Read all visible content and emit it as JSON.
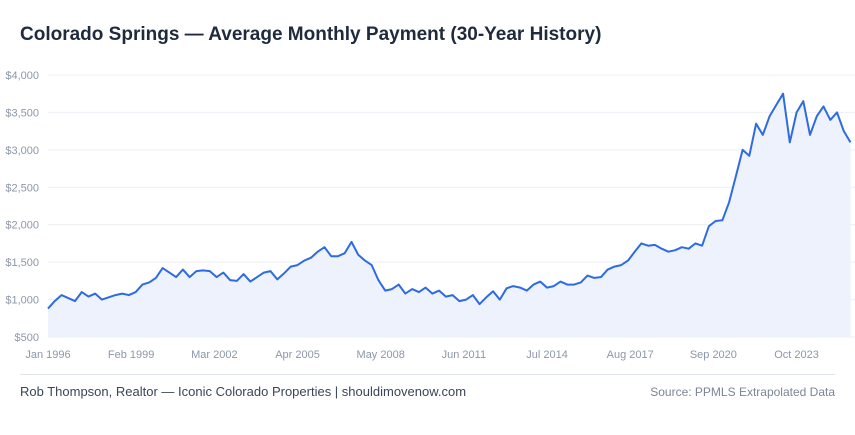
{
  "header": {
    "title": "Colorado Springs — Average Monthly Payment (30-Year History)"
  },
  "footer": {
    "credit": "Rob Thompson, Realtor — Iconic Colorado Properties  |  shouldimovenow.com",
    "source": "Source: PPMLS Extrapolated Data"
  },
  "colors": {
    "line": "#2d6be3",
    "area": "#eef2fc",
    "grid": "#eceff4"
  },
  "chart_data": {
    "type": "area",
    "title": "Colorado Springs — Average Monthly Payment (30-Year History)",
    "xlabel": "",
    "ylabel": "",
    "ylim": [
      500,
      4000
    ],
    "xlim": [
      "1996-01",
      "2025-12"
    ],
    "grid": true,
    "yticks": [
      500,
      1000,
      1500,
      2000,
      2500,
      3000,
      3500,
      4000
    ],
    "ytick_labels": [
      "$500",
      "$1,000",
      "$1,500",
      "$2,000",
      "$2,500",
      "$3,000",
      "$3,500",
      "$4,000"
    ],
    "xticks": [
      "1996-01",
      "1999-02",
      "2002-03",
      "2005-04",
      "2008-05",
      "2011-06",
      "2014-07",
      "2017-08",
      "2020-09",
      "2023-10"
    ],
    "xtick_labels": [
      "Jan 1996",
      "Feb 1999",
      "Mar 2002",
      "Apr 2005",
      "May 2008",
      "Jun 2011",
      "Jul 2014",
      "Aug 2017",
      "Sep 2020",
      "Oct 2023"
    ],
    "series": [
      {
        "x": [
          "1996-01",
          "1996-04",
          "1996-07",
          "1996-10",
          "1997-01",
          "1997-04",
          "1997-07",
          "1997-10",
          "1998-01",
          "1998-04",
          "1998-07",
          "1998-10",
          "1999-01",
          "1999-04",
          "1999-07",
          "1999-10",
          "2000-01",
          "2000-04",
          "2000-07",
          "2000-10",
          "2001-01",
          "2001-04",
          "2001-07",
          "2001-10",
          "2002-01",
          "2002-04",
          "2002-07",
          "2002-10",
          "2003-01",
          "2003-04",
          "2003-07",
          "2003-10",
          "2004-01",
          "2004-04",
          "2004-07",
          "2004-10",
          "2005-01",
          "2005-04",
          "2005-07",
          "2005-10",
          "2006-01",
          "2006-04",
          "2006-07",
          "2006-10",
          "2007-01",
          "2007-04",
          "2007-07",
          "2007-10",
          "2008-01",
          "2008-04",
          "2008-07",
          "2008-10",
          "2009-01",
          "2009-04",
          "2009-07",
          "2009-10",
          "2010-01",
          "2010-04",
          "2010-07",
          "2010-10",
          "2011-01",
          "2011-04",
          "2011-07",
          "2011-10",
          "2012-01",
          "2012-04",
          "2012-07",
          "2012-10",
          "2013-01",
          "2013-04",
          "2013-07",
          "2013-10",
          "2014-01",
          "2014-04",
          "2014-07",
          "2014-10",
          "2015-01",
          "2015-04",
          "2015-07",
          "2015-10",
          "2016-01",
          "2016-04",
          "2016-07",
          "2016-10",
          "2017-01",
          "2017-04",
          "2017-07",
          "2017-10",
          "2018-01",
          "2018-04",
          "2018-07",
          "2018-10",
          "2019-01",
          "2019-04",
          "2019-07",
          "2019-10",
          "2020-01",
          "2020-04",
          "2020-07",
          "2020-10",
          "2021-01",
          "2021-04",
          "2021-07",
          "2021-10",
          "2022-01",
          "2022-04",
          "2022-07",
          "2022-10",
          "2023-01",
          "2023-04",
          "2023-07",
          "2023-10",
          "2024-01",
          "2024-04",
          "2024-07",
          "2024-10",
          "2025-01",
          "2025-04",
          "2025-07",
          "2025-10"
        ],
        "y": [
          880,
          980,
          1060,
          1020,
          980,
          1100,
          1040,
          1080,
          1000,
          1030,
          1060,
          1080,
          1060,
          1100,
          1200,
          1230,
          1290,
          1420,
          1360,
          1300,
          1400,
          1300,
          1380,
          1390,
          1380,
          1300,
          1360,
          1260,
          1250,
          1340,
          1240,
          1300,
          1360,
          1380,
          1270,
          1350,
          1440,
          1460,
          1520,
          1560,
          1640,
          1700,
          1580,
          1580,
          1620,
          1770,
          1600,
          1520,
          1460,
          1260,
          1120,
          1140,
          1200,
          1080,
          1140,
          1100,
          1160,
          1080,
          1120,
          1040,
          1060,
          980,
          1000,
          1060,
          940,
          1030,
          1110,
          1000,
          1150,
          1180,
          1160,
          1120,
          1200,
          1240,
          1160,
          1180,
          1240,
          1200,
          1200,
          1230,
          1320,
          1290,
          1300,
          1400,
          1440,
          1460,
          1520,
          1640,
          1750,
          1720,
          1730,
          1680,
          1640,
          1660,
          1700,
          1680,
          1750,
          1720,
          1980,
          2050,
          2060,
          2300,
          2650,
          3000,
          2920,
          3350,
          3200,
          3450,
          3600,
          3750,
          3100,
          3500,
          3650,
          3200,
          3450,
          3580,
          3400,
          3500,
          3250,
          3100
        ]
      }
    ]
  }
}
